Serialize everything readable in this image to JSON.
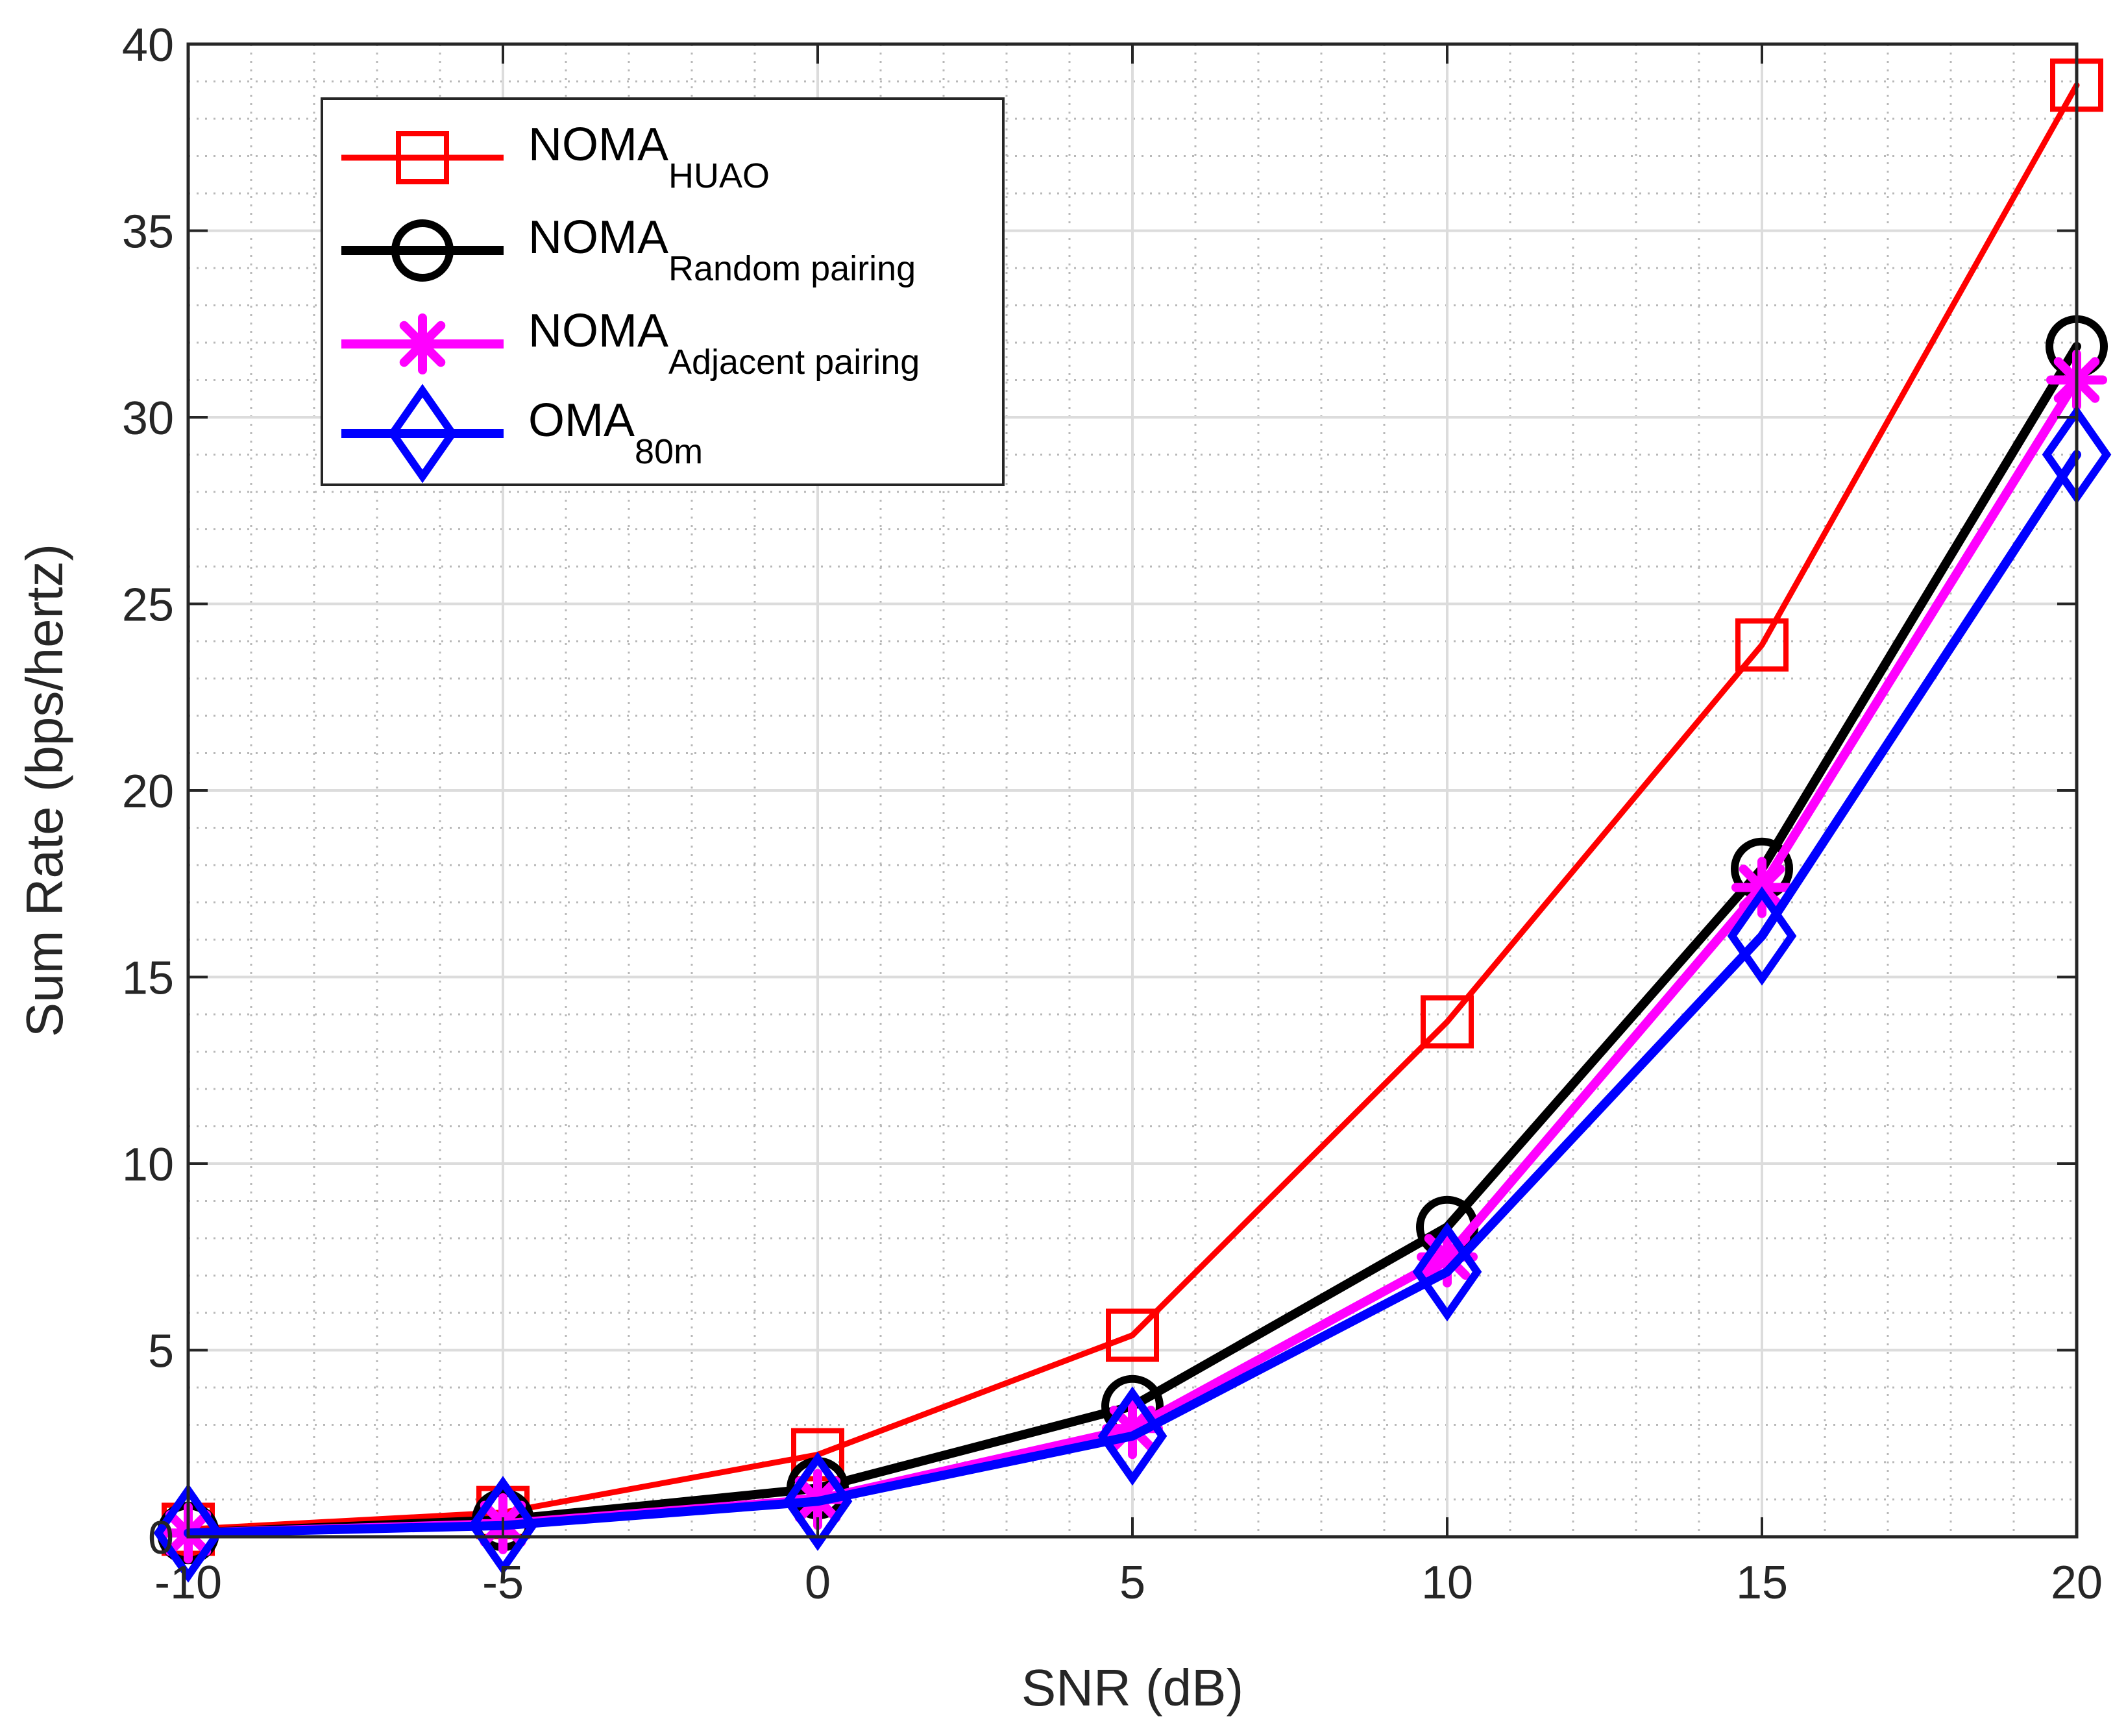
{
  "chart_data": {
    "type": "line",
    "title": "",
    "xlabel": "SNR (dB)",
    "ylabel": "Sum Rate (bps/hertz)",
    "x": [
      -10,
      -5,
      0,
      5,
      10,
      15,
      20
    ],
    "xlim": [
      -10,
      20
    ],
    "ylim": [
      0,
      40
    ],
    "xticks": [
      -10,
      -5,
      0,
      5,
      10,
      15,
      20
    ],
    "xtick_labels": [
      "-10",
      "-5",
      "0",
      "5",
      "10",
      "15",
      "20"
    ],
    "yticks": [
      0,
      5,
      10,
      15,
      20,
      25,
      30,
      35,
      40
    ],
    "ytick_labels": [
      "0",
      "5",
      "10",
      "15",
      "20",
      "25",
      "30",
      "35",
      "40"
    ],
    "grid": true,
    "minor_grid": true,
    "legend_position": "top-left",
    "series": [
      {
        "name": "NOMA",
        "subscript": "HUAO",
        "color": "#ff0000",
        "marker": "square",
        "line": "thin",
        "values": [
          0.2,
          0.65,
          2.2,
          5.4,
          13.8,
          23.9,
          38.9
        ]
      },
      {
        "name": "NOMA",
        "subscript": "Random pairing",
        "color": "#000000",
        "marker": "circle",
        "line": "thick",
        "values": [
          0.1,
          0.45,
          1.3,
          3.5,
          8.3,
          17.9,
          31.9
        ]
      },
      {
        "name": "NOMA",
        "subscript": "Adjacent pairing",
        "color": "#ff00ff",
        "marker": "asterisk",
        "line": "thick",
        "values": [
          0.1,
          0.35,
          1.0,
          2.9,
          7.5,
          17.4,
          31.0
        ]
      },
      {
        "name": "OMA",
        "subscript": "80m",
        "color": "#0000ff",
        "marker": "diamond",
        "line": "thick",
        "values": [
          0.1,
          0.3,
          0.95,
          2.7,
          7.1,
          16.1,
          29.0
        ]
      }
    ]
  }
}
